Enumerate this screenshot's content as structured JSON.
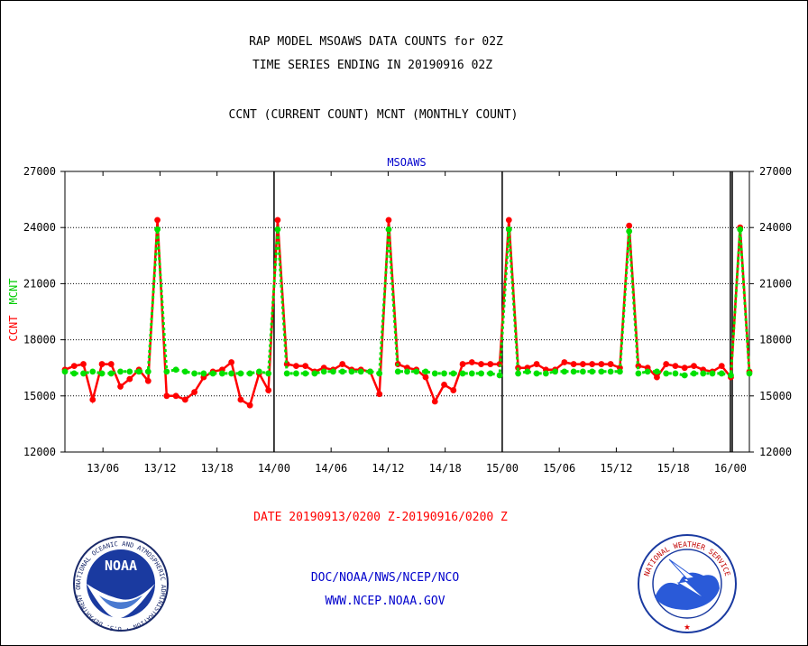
{
  "header": {
    "title_line1": "RAP MODEL MSOAWS DATA COUNTS for 02Z",
    "title_line2": "TIME SERIES ENDING IN 20190916 02Z",
    "subtitle": "CCNT (CURRENT COUNT) MCNT (MONTHLY COUNT)"
  },
  "footer": {
    "date_range": "DATE 20190913/0200 Z-20190916/0200 Z",
    "org": "DOC/NOAA/NWS/NCEP/NCO",
    "url": "WWW.NCEP.NOAA.GOV"
  },
  "logos": {
    "noaa_text": "NOAA",
    "noaa_ring": "NATIONAL OCEANIC AND ATMOSPHERIC ADMINISTRATION · U.S. DEPARTMENT OF COMMERCE ·",
    "nws_ring": "NATIONAL WEATHER SERVICE"
  },
  "colors": {
    "ccnt": "#ff0000",
    "mcnt": "#00e000",
    "title_blue": "#0000cc",
    "grid": "#000000"
  },
  "chart_data": {
    "type": "line",
    "title": "MSOAWS",
    "ylabel_left": [
      "CCNT",
      "MCNT"
    ],
    "ylim": [
      12000,
      27000
    ],
    "yticks": [
      "12000",
      "15000",
      "18000",
      "21000",
      "24000",
      "27000"
    ],
    "xticks": [
      "13/06",
      "13/12",
      "13/18",
      "14/00",
      "14/06",
      "14/12",
      "14/18",
      "15/00",
      "15/06",
      "15/12",
      "15/18",
      "16/00"
    ],
    "x_start_hour": 2,
    "x_end_hour": 74,
    "grid": true,
    "series": [
      {
        "name": "CCNT",
        "color": "#ff0000",
        "values": [
          16400,
          16600,
          16700,
          14800,
          16700,
          16700,
          15500,
          15900,
          16400,
          15800,
          24400,
          15000,
          15000,
          14800,
          15200,
          16000,
          16300,
          16400,
          16800,
          14800,
          14500,
          16200,
          15300,
          24400,
          16700,
          16600,
          16600,
          16300,
          16500,
          16400,
          16700,
          16400,
          16400,
          16300,
          15100,
          24400,
          16700,
          16500,
          16400,
          16000,
          14700,
          15600,
          15300,
          16700,
          16800,
          16700,
          16700,
          16700,
          24400,
          16500,
          16500,
          16700,
          16400,
          16400,
          16800,
          16700,
          16700,
          16700,
          16700,
          16700,
          16500,
          24100,
          16600,
          16500,
          16000,
          16700,
          16600,
          16500,
          16600,
          16400,
          16300,
          16600,
          16000,
          24000,
          16300
        ]
      },
      {
        "name": "MCNT",
        "color": "#00e000",
        "values": [
          16300,
          16200,
          16200,
          16300,
          16200,
          16200,
          16300,
          16300,
          16300,
          16300,
          23900,
          16300,
          16400,
          16300,
          16200,
          16200,
          16200,
          16200,
          16200,
          16200,
          16200,
          16300,
          16200,
          23900,
          16200,
          16200,
          16200,
          16200,
          16300,
          16300,
          16300,
          16300,
          16300,
          16300,
          16200,
          23900,
          16300,
          16300,
          16300,
          16300,
          16200,
          16200,
          16200,
          16200,
          16200,
          16200,
          16200,
          16100,
          23900,
          16200,
          16300,
          16200,
          16200,
          16300,
          16300,
          16300,
          16300,
          16300,
          16300,
          16300,
          16300,
          23800,
          16200,
          16300,
          16300,
          16200,
          16200,
          16100,
          16200,
          16200,
          16200,
          16200,
          16100,
          23900,
          16200
        ]
      }
    ]
  }
}
